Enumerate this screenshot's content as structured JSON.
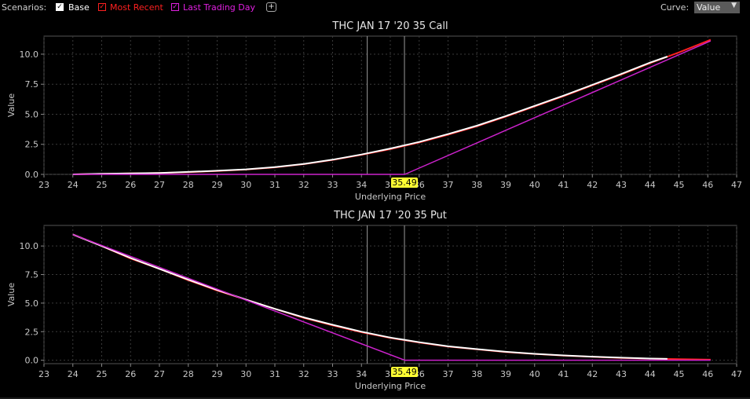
{
  "toolbar": {
    "scenarios_label": "Scenarios:",
    "scenarios": [
      {
        "label": "Base",
        "color": "#ffffff",
        "checked": true
      },
      {
        "label": "Most Recent",
        "color": "#ff2020",
        "checked": true
      },
      {
        "label": "Last Trading Day",
        "color": "#e020e0",
        "checked": true
      }
    ],
    "add_symbol": "+",
    "curve_label": "Curve:",
    "curve_value": "Value",
    "curve_arrow": "▼"
  },
  "chart_data": [
    {
      "type": "line",
      "title": "THC JAN 17 '20 35 Call",
      "xlabel": "Underlying Price",
      "ylabel": "Value",
      "xlim": [
        23,
        47
      ],
      "ylim": [
        0,
        11.5
      ],
      "x_ticks": [
        23,
        24,
        25,
        26,
        27,
        28,
        29,
        30,
        31,
        32,
        33,
        34,
        35,
        36,
        37,
        38,
        39,
        40,
        41,
        42,
        43,
        44,
        45,
        46,
        47
      ],
      "y_ticks": [
        0,
        2.5,
        5.0,
        7.5,
        10.0
      ],
      "y_tick_labels": [
        "0.0",
        "2.5",
        "5.0",
        "7.5",
        "10.0"
      ],
      "grid": true,
      "current_price": 35.49,
      "current_price_label": "35.49",
      "reference_lines": [
        34.2
      ],
      "series": [
        {
          "color": "#ff2020",
          "x": [
            24,
            25,
            26,
            27,
            28,
            29,
            30,
            31,
            32,
            33,
            34,
            35,
            36,
            37,
            38,
            39,
            40,
            41,
            42,
            43,
            44,
            45,
            46.1
          ],
          "values": [
            0.0,
            0.04,
            0.08,
            0.12,
            0.18,
            0.28,
            0.4,
            0.58,
            0.85,
            1.2,
            1.62,
            2.1,
            2.65,
            3.3,
            4.0,
            4.8,
            5.65,
            6.5,
            7.4,
            8.3,
            9.25,
            10.15,
            11.2
          ]
        },
        {
          "color": "#ffffff",
          "x": [
            24,
            25,
            26,
            27,
            28,
            29,
            30,
            31,
            32,
            33,
            34,
            35,
            36,
            37,
            38,
            39,
            40,
            41,
            42,
            43,
            44,
            44.6
          ],
          "values": [
            0.0,
            0.05,
            0.08,
            0.12,
            0.2,
            0.3,
            0.42,
            0.6,
            0.87,
            1.22,
            1.65,
            2.15,
            2.7,
            3.35,
            4.05,
            4.85,
            5.7,
            6.55,
            7.45,
            8.35,
            9.3,
            9.8
          ]
        },
        {
          "color": "#cc22cc",
          "x": [
            24,
            35.5,
            46.1
          ],
          "values": [
            0.0,
            0.0,
            11.1
          ]
        }
      ]
    },
    {
      "type": "line",
      "title": "THC JAN 17 '20 35 Put",
      "xlabel": "Underlying Price",
      "ylabel": "Value",
      "xlim": [
        23,
        47
      ],
      "ylim": [
        -0.3,
        11.8
      ],
      "x_ticks": [
        23,
        24,
        25,
        26,
        27,
        28,
        29,
        30,
        31,
        32,
        33,
        34,
        35,
        36,
        37,
        38,
        39,
        40,
        41,
        42,
        43,
        44,
        45,
        46,
        47
      ],
      "y_ticks": [
        0,
        2.5,
        5.0,
        7.5,
        10.0
      ],
      "y_tick_labels": [
        "0.0",
        "2.5",
        "5.0",
        "7.5",
        "10.0"
      ],
      "grid": true,
      "current_price": 35.49,
      "current_price_label": "35.49",
      "reference_lines": [
        34.2
      ],
      "series": [
        {
          "color": "#ff2020",
          "x": [
            24,
            25,
            26,
            27,
            28,
            29,
            30,
            31,
            32,
            33,
            34,
            35,
            36,
            37,
            38,
            39,
            40,
            41,
            42,
            43,
            44,
            45,
            46.1
          ],
          "values": [
            11.0,
            10.0,
            8.9,
            8.0,
            7.0,
            6.1,
            5.3,
            4.5,
            3.7,
            3.05,
            2.45,
            1.95,
            1.55,
            1.2,
            0.95,
            0.72,
            0.55,
            0.4,
            0.3,
            0.2,
            0.14,
            0.1,
            0.05
          ]
        },
        {
          "color": "#ffffff",
          "x": [
            24,
            25,
            26,
            27,
            28,
            29,
            30,
            31,
            32,
            33,
            34,
            35,
            36,
            37,
            38,
            39,
            40,
            41,
            42,
            43,
            44,
            44.6
          ],
          "values": [
            11.0,
            10.0,
            8.95,
            8.0,
            7.05,
            6.15,
            5.3,
            4.5,
            3.75,
            3.1,
            2.5,
            1.98,
            1.58,
            1.22,
            0.97,
            0.74,
            0.56,
            0.42,
            0.31,
            0.22,
            0.15,
            0.12
          ]
        },
        {
          "color": "#cc22cc",
          "x": [
            24,
            35.5,
            46.1
          ],
          "values": [
            11.0,
            0.0,
            0.0
          ]
        }
      ]
    }
  ]
}
